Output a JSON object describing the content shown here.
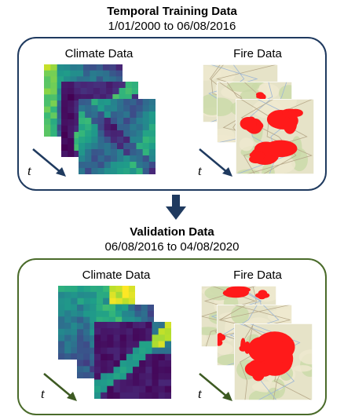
{
  "training": {
    "title": "Temporal Training Data",
    "range": "1/01/2000 to 06/08/2016",
    "climate_label": "Climate Data",
    "fire_label": "Fire Data",
    "time_label": "t",
    "border_color": "#1f3a5f"
  },
  "validation": {
    "title": "Validation Data",
    "range": "06/08/2016 to 04/08/2020",
    "climate_label": "Climate Data",
    "fire_label": "Fire Data",
    "time_label": "t",
    "border_color": "#4a6b2a"
  },
  "flow_arrow": {
    "icon": "down-arrow-icon",
    "color": "#1f3a5f"
  },
  "colors": {
    "fire": "#ff1a1a",
    "map_background": "#e6e3c8",
    "climate_low": "#440154",
    "climate_high": "#fde725"
  }
}
